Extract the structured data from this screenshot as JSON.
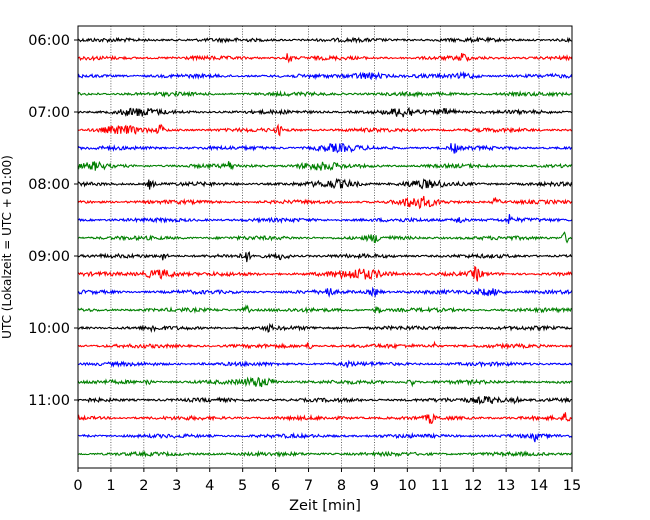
{
  "chart_data": {
    "type": "line",
    "title": "",
    "xlabel": "Zeit  [min]",
    "ylabel": "UTC (Lokalzeit = UTC + 01:00)",
    "xlim": [
      0,
      15
    ],
    "x_ticks": [
      "0",
      "1",
      "2",
      "3",
      "4",
      "5",
      "6",
      "7",
      "8",
      "9",
      "10",
      "11",
      "12",
      "13",
      "14",
      "15"
    ],
    "y_tick_labels": [
      "06:00",
      "07:00",
      "08:00",
      "09:00",
      "10:00",
      "11:00"
    ],
    "grid": "vertical dotted",
    "trace_interval_min": 15,
    "trace_colors": [
      "#000000",
      "#ff0000",
      "#0000ff",
      "#008000"
    ],
    "traces": [
      {
        "start": "06:00"
      },
      {
        "start": "06:15"
      },
      {
        "start": "06:30"
      },
      {
        "start": "06:45"
      },
      {
        "start": "07:00"
      },
      {
        "start": "07:15"
      },
      {
        "start": "07:30"
      },
      {
        "start": "07:45"
      },
      {
        "start": "08:00"
      },
      {
        "start": "08:15"
      },
      {
        "start": "08:30"
      },
      {
        "start": "08:45"
      },
      {
        "start": "09:00"
      },
      {
        "start": "09:15"
      },
      {
        "start": "09:30"
      },
      {
        "start": "09:45"
      },
      {
        "start": "10:00"
      },
      {
        "start": "10:15"
      },
      {
        "start": "10:30"
      },
      {
        "start": "10:45"
      },
      {
        "start": "11:00"
      },
      {
        "start": "11:15"
      },
      {
        "start": "11:30"
      },
      {
        "start": "11:45"
      }
    ]
  }
}
